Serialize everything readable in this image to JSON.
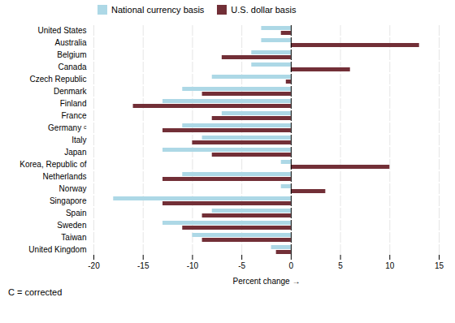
{
  "chart_data": {
    "type": "bar",
    "orientation": "horizontal",
    "categories": [
      "United States",
      "Australia",
      "Belgium",
      "Canada",
      "Czech Republic",
      "Denmark",
      "Finland",
      "France",
      "Germany ᶜ",
      "Italy",
      "Japan",
      "Korea, Republic of",
      "Netherlands",
      "Norway",
      "Singapore",
      "Spain",
      "Sweden",
      "Taiwan",
      "United Kingdom"
    ],
    "series": [
      {
        "name": "National currency basis",
        "color": "#add8e6",
        "values": [
          -3,
          -3,
          -4,
          -4,
          -8,
          -11,
          -13,
          -7,
          -11,
          -9,
          -13,
          -1,
          -11,
          -1,
          -18,
          -8,
          -13,
          -10,
          -2
        ]
      },
      {
        "name": "U.S. dollar basis",
        "color": "#722f37",
        "values": [
          -1,
          13,
          -7,
          6,
          -0.5,
          -9,
          -16,
          -8,
          -13,
          -10,
          -8,
          10,
          -13,
          3.5,
          -13,
          -9,
          -11,
          -9,
          -1.5
        ]
      }
    ],
    "xlim": [
      -20,
      15
    ],
    "xticks": [
      -20,
      -15,
      -10,
      -5,
      0,
      5,
      10,
      15
    ],
    "xlabel": "Percent change",
    "grid": true,
    "legend": "upper left",
    "annotations": [
      "C = corrected"
    ]
  }
}
